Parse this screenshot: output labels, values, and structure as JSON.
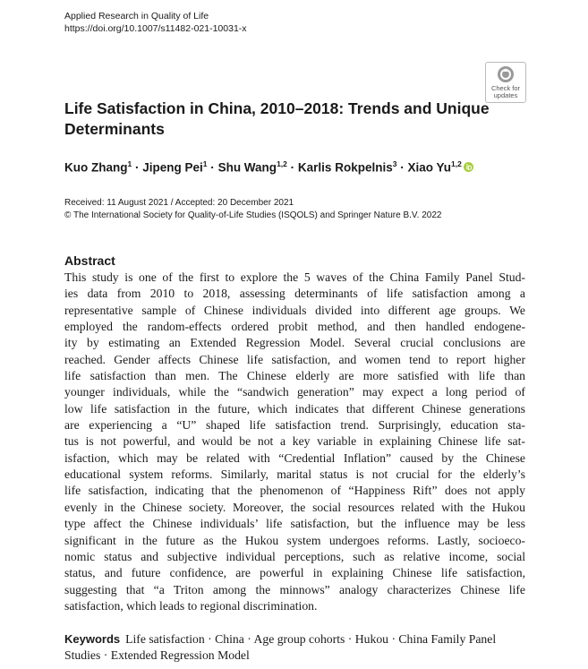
{
  "journal": {
    "name": "Applied Research in Quality of Life",
    "doi": "https://doi.org/10.1007/s11482-021-10031-x"
  },
  "badge": {
    "text": [
      "Check for",
      "updates"
    ]
  },
  "title": [
    "Life Satisfaction in China, 2010–2018: Trends and Unique",
    "Determinants"
  ],
  "authors": {
    "separator": "·",
    "list": [
      {
        "name": "Kuo Zhang",
        "affiliation": "1"
      },
      {
        "name": "Jipeng Pei",
        "affiliation": "1"
      },
      {
        "name": "Shu Wang",
        "affiliation": "1,2"
      },
      {
        "name": "Karlis Rokpelnis",
        "affiliation": "3"
      },
      {
        "name": "Xiao Yu",
        "affiliation": "1,2"
      }
    ]
  },
  "dates": "Received: 11 August 2021 / Accepted: 20 December 2021",
  "copyright": "© The International Society for Quality-of-Life Studies (ISQOLS) and Springer Nature B.V. 2022",
  "abstract": {
    "heading": "Abstract",
    "lines": [
      "This study is one of the first to explore the 5 waves of the China Family Panel Stud-",
      "ies data from 2010 to 2018, assessing determinants of life satisfaction among a",
      "representative sample of Chinese individuals divided into different age groups. We",
      "employed the random-effects ordered probit method, and then handled endogene-",
      "ity by estimating an Extended Regression Model. Several crucial conclusions are",
      "reached. Gender affects Chinese life satisfaction, and women tend to report higher",
      "life satisfaction than men. The Chinese elderly are more satisfied with life than",
      "younger individuals, while the “sandwich generation” may expect a long period of",
      "low life satisfaction in the future, which indicates that different Chinese generations",
      "are experiencing a “U” shaped life satisfaction trend. Surprisingly, education sta-",
      "tus is not powerful, and would be not a key variable in explaining Chinese life sat-",
      "isfaction, which may be related with “Credential Inflation” caused by the Chinese",
      "educational system reforms. Similarly, marital status is not crucial for the elderly’s",
      "life satisfaction, indicating that the phenomenon of “Happiness Rift” does not apply",
      "evenly in the Chinese society. Moreover, the social resources related with the Hukou",
      "type affect the Chinese individuals’ life satisfaction, but the influence may be less",
      "significant in the future as the Hukou system undergoes reforms. Lastly, socioeco-",
      "nomic status and subjective individual perceptions, such as relative income, social",
      "status, and future confidence, are powerful in explaining Chinese life satisfaction,",
      "suggesting that “a Triton among the minnows” analogy characterizes Chinese life",
      "satisfaction, which leads to regional discrimination."
    ]
  },
  "keywords": {
    "label": "Keywords",
    "separator": "·",
    "items": [
      "Life satisfaction",
      "China",
      "Age group cohorts",
      "Hukou",
      "China Family Panel Studies",
      "Extended Regression Model"
    ]
  }
}
